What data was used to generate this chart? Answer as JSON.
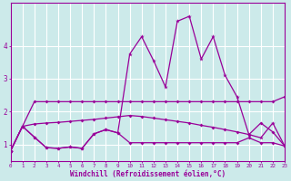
{
  "xlabel": "Windchill (Refroidissement éolien,°C)",
  "background_color": "#cceaea",
  "grid_color": "#ffffff",
  "line_color": "#990099",
  "x_values": [
    0,
    1,
    2,
    3,
    4,
    5,
    6,
    7,
    8,
    9,
    10,
    11,
    12,
    13,
    14,
    15,
    16,
    17,
    18,
    19,
    20,
    21,
    22,
    23
  ],
  "series1": [
    0.8,
    1.55,
    2.3,
    2.3,
    2.3,
    2.3,
    2.3,
    2.3,
    2.3,
    2.3,
    2.3,
    2.3,
    2.3,
    2.3,
    2.3,
    2.3,
    2.3,
    2.3,
    2.3,
    2.3,
    2.3,
    2.3,
    2.3,
    2.45
  ],
  "series2": [
    0.8,
    1.55,
    1.62,
    1.65,
    1.67,
    1.7,
    1.73,
    1.76,
    1.8,
    1.84,
    1.88,
    1.85,
    1.8,
    1.75,
    1.7,
    1.65,
    1.58,
    1.52,
    1.45,
    1.38,
    1.3,
    1.65,
    1.38,
    0.95
  ],
  "series3": [
    0.8,
    1.55,
    1.22,
    0.9,
    0.88,
    0.92,
    0.88,
    1.32,
    1.45,
    1.35,
    3.75,
    4.28,
    3.55,
    2.75,
    4.75,
    4.9,
    3.6,
    4.28,
    3.1,
    2.45,
    1.3,
    1.2,
    1.65,
    0.95
  ],
  "series4": [
    0.8,
    1.55,
    1.22,
    0.9,
    0.88,
    0.92,
    0.88,
    1.32,
    1.45,
    1.35,
    1.05,
    1.05,
    1.05,
    1.05,
    1.05,
    1.05,
    1.05,
    1.05,
    1.05,
    1.05,
    1.2,
    1.05,
    1.05,
    0.95
  ],
  "ylim": [
    0.5,
    5.3
  ],
  "xlim": [
    0,
    23
  ],
  "yticks": [
    1,
    2,
    3,
    4
  ],
  "xticks": [
    0,
    1,
    2,
    3,
    4,
    5,
    6,
    7,
    8,
    9,
    10,
    11,
    12,
    13,
    14,
    15,
    16,
    17,
    18,
    19,
    20,
    21,
    22,
    23
  ]
}
